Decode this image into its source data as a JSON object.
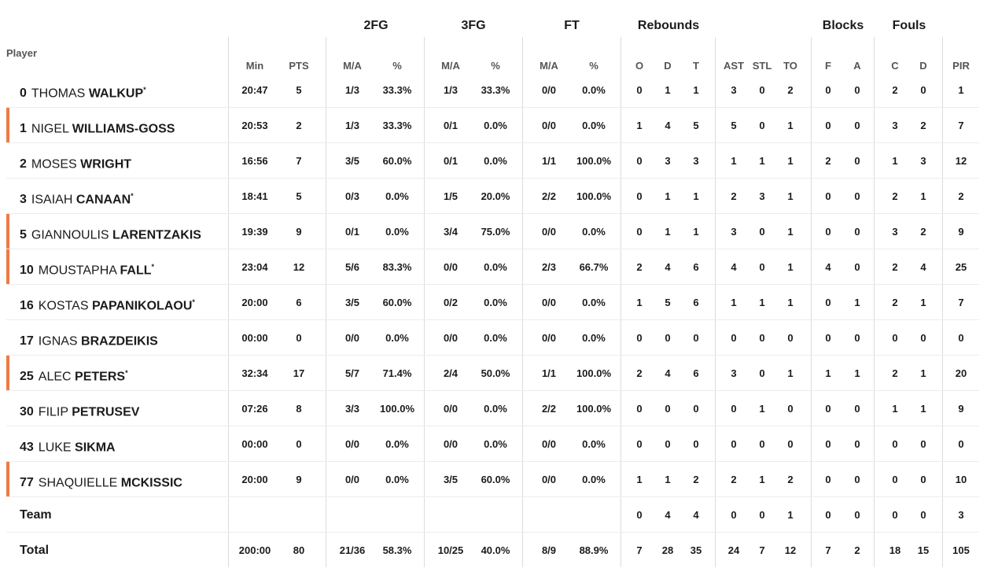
{
  "group_headers": [
    {
      "id": "2fg",
      "label": "2FG"
    },
    {
      "id": "3fg",
      "label": "3FG"
    },
    {
      "id": "ft",
      "label": "FT"
    },
    {
      "id": "reb",
      "label": "Rebounds"
    },
    {
      "id": "blk",
      "label": "Blocks"
    },
    {
      "id": "fouls",
      "label": "Fouls"
    }
  ],
  "player_header": "Player",
  "columns": [
    "Min",
    "PTS",
    "M/A",
    "%",
    "M/A",
    "%",
    "M/A",
    "%",
    "O",
    "D",
    "T",
    "AST",
    "STL",
    "TO",
    "F",
    "A",
    "C",
    "D",
    "PIR"
  ],
  "players": [
    {
      "num": "0",
      "first": "THOMAS",
      "last": "WALKUP",
      "star": "*",
      "marker": false,
      "stats": [
        "20:47",
        "5",
        "1/3",
        "33.3%",
        "1/3",
        "33.3%",
        "0/0",
        "0.0%",
        "0",
        "1",
        "1",
        "3",
        "0",
        "2",
        "0",
        "0",
        "2",
        "0",
        "1"
      ]
    },
    {
      "num": "1",
      "first": "NIGEL",
      "last": "WILLIAMS-GOSS",
      "star": "",
      "marker": true,
      "stats": [
        "20:53",
        "2",
        "1/3",
        "33.3%",
        "0/1",
        "0.0%",
        "0/0",
        "0.0%",
        "1",
        "4",
        "5",
        "5",
        "0",
        "1",
        "0",
        "0",
        "3",
        "2",
        "7"
      ]
    },
    {
      "num": "2",
      "first": "MOSES",
      "last": "WRIGHT",
      "star": "",
      "marker": false,
      "stats": [
        "16:56",
        "7",
        "3/5",
        "60.0%",
        "0/1",
        "0.0%",
        "1/1",
        "100.0%",
        "0",
        "3",
        "3",
        "1",
        "1",
        "1",
        "2",
        "0",
        "1",
        "3",
        "12"
      ]
    },
    {
      "num": "3",
      "first": "ISAIAH",
      "last": "CANAAN",
      "star": "*",
      "marker": false,
      "stats": [
        "18:41",
        "5",
        "0/3",
        "0.0%",
        "1/5",
        "20.0%",
        "2/2",
        "100.0%",
        "0",
        "1",
        "1",
        "2",
        "3",
        "1",
        "0",
        "0",
        "2",
        "1",
        "2"
      ]
    },
    {
      "num": "5",
      "first": "GIANNOULIS",
      "last": "LARENTZAKIS",
      "star": "",
      "marker": true,
      "stats": [
        "19:39",
        "9",
        "0/1",
        "0.0%",
        "3/4",
        "75.0%",
        "0/0",
        "0.0%",
        "0",
        "1",
        "1",
        "3",
        "0",
        "1",
        "0",
        "0",
        "3",
        "2",
        "9"
      ]
    },
    {
      "num": "10",
      "first": "MOUSTAPHA",
      "last": "FALL",
      "star": "*",
      "marker": true,
      "stats": [
        "23:04",
        "12",
        "5/6",
        "83.3%",
        "0/0",
        "0.0%",
        "2/3",
        "66.7%",
        "2",
        "4",
        "6",
        "4",
        "0",
        "1",
        "4",
        "0",
        "2",
        "4",
        "25"
      ]
    },
    {
      "num": "16",
      "first": "KOSTAS",
      "last": "PAPANIKOLAOU",
      "star": "*",
      "marker": false,
      "stats": [
        "20:00",
        "6",
        "3/5",
        "60.0%",
        "0/2",
        "0.0%",
        "0/0",
        "0.0%",
        "1",
        "5",
        "6",
        "1",
        "1",
        "1",
        "0",
        "1",
        "2",
        "1",
        "7"
      ]
    },
    {
      "num": "17",
      "first": "IGNAS",
      "last": "BRAZDEIKIS",
      "star": "",
      "marker": false,
      "stats": [
        "00:00",
        "0",
        "0/0",
        "0.0%",
        "0/0",
        "0.0%",
        "0/0",
        "0.0%",
        "0",
        "0",
        "0",
        "0",
        "0",
        "0",
        "0",
        "0",
        "0",
        "0",
        "0"
      ]
    },
    {
      "num": "25",
      "first": "ALEC",
      "last": "PETERS",
      "star": "*",
      "marker": true,
      "stats": [
        "32:34",
        "17",
        "5/7",
        "71.4%",
        "2/4",
        "50.0%",
        "1/1",
        "100.0%",
        "2",
        "4",
        "6",
        "3",
        "0",
        "1",
        "1",
        "1",
        "2",
        "1",
        "20"
      ]
    },
    {
      "num": "30",
      "first": "FILIP",
      "last": "PETRUSEV",
      "star": "",
      "marker": false,
      "stats": [
        "07:26",
        "8",
        "3/3",
        "100.0%",
        "0/0",
        "0.0%",
        "2/2",
        "100.0%",
        "0",
        "0",
        "0",
        "0",
        "1",
        "0",
        "0",
        "0",
        "1",
        "1",
        "9"
      ]
    },
    {
      "num": "43",
      "first": "LUKE",
      "last": "SIKMA",
      "star": "",
      "marker": false,
      "stats": [
        "00:00",
        "0",
        "0/0",
        "0.0%",
        "0/0",
        "0.0%",
        "0/0",
        "0.0%",
        "0",
        "0",
        "0",
        "0",
        "0",
        "0",
        "0",
        "0",
        "0",
        "0",
        "0"
      ]
    },
    {
      "num": "77",
      "first": "SHAQUIELLE",
      "last": "MCKISSIC",
      "star": "",
      "marker": true,
      "stats": [
        "20:00",
        "9",
        "0/0",
        "0.0%",
        "3/5",
        "60.0%",
        "0/0",
        "0.0%",
        "1",
        "1",
        "2",
        "2",
        "1",
        "2",
        "0",
        "0",
        "0",
        "0",
        "10"
      ]
    }
  ],
  "team": {
    "label": "Team",
    "stats": [
      "",
      "",
      "",
      "",
      "",
      "",
      "",
      "",
      "0",
      "4",
      "4",
      "0",
      "0",
      "1",
      "0",
      "0",
      "0",
      "0",
      "3"
    ]
  },
  "total": {
    "label": "Total",
    "stats": [
      "200:00",
      "80",
      "21/36",
      "58.3%",
      "10/25",
      "40.0%",
      "8/9",
      "88.9%",
      "7",
      "28",
      "35",
      "24",
      "7",
      "12",
      "7",
      "2",
      "18",
      "15",
      "105"
    ]
  },
  "colors": {
    "marker": "#ef7a43",
    "divider": "#dcdcdc",
    "row_separator": "#ececec"
  }
}
